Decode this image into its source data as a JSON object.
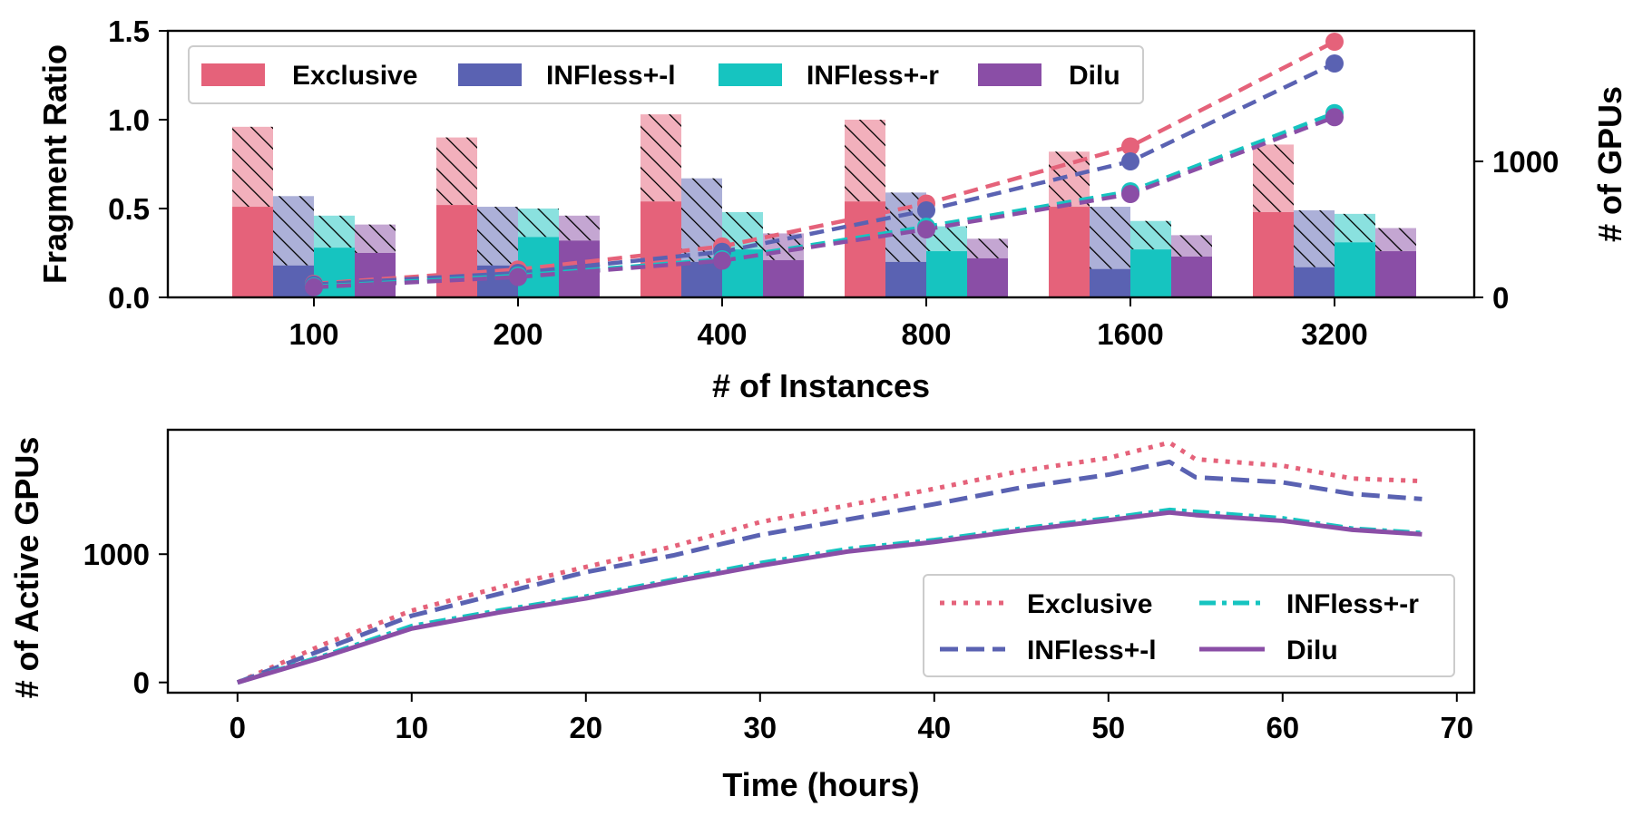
{
  "colors": {
    "exclusive": "#e5627a",
    "infless_l": "#5a62b2",
    "infless_r": "#16c4c0",
    "dilu": "#8a4ea6"
  },
  "chart_data": [
    {
      "type": "bar",
      "categories": [
        "100",
        "200",
        "400",
        "800",
        "1600",
        "3200"
      ],
      "xlabel": "# of Instances",
      "ylabel": "Fragment Ratio",
      "ylabel_right": "# of  GPUs",
      "ylim": [
        0,
        1.5
      ],
      "yticks": [
        "0.0",
        "0.5",
        "1.0",
        "1.5"
      ],
      "ylim_right": [
        0,
        1960
      ],
      "yticks_right": [
        "0",
        "1000"
      ],
      "legend": [
        "Exclusive",
        "INFless+-l",
        "INFless+-r",
        "Dilu"
      ],
      "series": [
        {
          "name": "Exclusive",
          "solid": [
            0.51,
            0.52,
            0.54,
            0.54,
            0.51,
            0.48
          ],
          "total": [
            0.96,
            0.9,
            1.03,
            1.0,
            0.82,
            0.86
          ]
        },
        {
          "name": "INFless+-l",
          "solid": [
            0.18,
            0.18,
            0.2,
            0.2,
            0.16,
            0.17
          ],
          "total": [
            0.57,
            0.51,
            0.67,
            0.59,
            0.51,
            0.49
          ]
        },
        {
          "name": "INFless+-r",
          "solid": [
            0.28,
            0.34,
            0.27,
            0.26,
            0.27,
            0.31
          ],
          "total": [
            0.46,
            0.5,
            0.48,
            0.4,
            0.43,
            0.47
          ]
        },
        {
          "name": "Dilu",
          "solid": [
            0.25,
            0.32,
            0.21,
            0.22,
            0.23,
            0.26
          ],
          "total": [
            0.41,
            0.46,
            0.36,
            0.33,
            0.35,
            0.39
          ]
        }
      ],
      "gpu_lines": [
        {
          "name": "Exclusive",
          "values": [
            100,
            205,
            375,
            690,
            1110,
            1880
          ]
        },
        {
          "name": "INFless+-l",
          "values": [
            95,
            180,
            335,
            640,
            1000,
            1720
          ]
        },
        {
          "name": "INFless+-r",
          "values": [
            80,
            160,
            280,
            520,
            780,
            1355
          ]
        },
        {
          "name": "Dilu",
          "values": [
            75,
            150,
            270,
            500,
            760,
            1325
          ]
        }
      ]
    },
    {
      "type": "line",
      "xlabel": "Time (hours)",
      "ylabel": "# of Active GPUs",
      "xlim": [
        -4,
        71
      ],
      "ylim": [
        -80,
        1970
      ],
      "xticks": [
        "0",
        "10",
        "20",
        "30",
        "40",
        "50",
        "60",
        "70"
      ],
      "yticks": [
        "0",
        "1000"
      ],
      "legend": [
        "Exclusive",
        "INFless+-r",
        "INFless+-l",
        "Dilu"
      ],
      "series": [
        {
          "name": "Exclusive",
          "style": "dotted",
          "x": [
            0,
            5,
            10,
            15,
            20,
            25,
            30,
            35,
            40,
            45,
            50,
            53.5,
            55,
            60,
            64,
            68
          ],
          "values": [
            0,
            300,
            560,
            740,
            900,
            1060,
            1250,
            1380,
            1510,
            1650,
            1750,
            1870,
            1740,
            1690,
            1590,
            1570
          ]
        },
        {
          "name": "INFless+-l",
          "style": "dashed",
          "x": [
            0,
            5,
            10,
            15,
            20,
            25,
            30,
            35,
            40,
            45,
            50,
            53.5,
            55,
            60,
            64,
            68
          ],
          "values": [
            0,
            260,
            520,
            690,
            860,
            990,
            1150,
            1270,
            1390,
            1520,
            1620,
            1720,
            1600,
            1560,
            1470,
            1430
          ]
        },
        {
          "name": "INFless+-r",
          "style": "dashdot",
          "x": [
            0,
            5,
            10,
            15,
            20,
            25,
            30,
            35,
            40,
            45,
            50,
            53.5,
            55,
            60,
            64,
            68
          ],
          "values": [
            0,
            210,
            440,
            560,
            670,
            800,
            930,
            1040,
            1110,
            1200,
            1280,
            1345,
            1330,
            1280,
            1200,
            1165
          ]
        },
        {
          "name": "Dilu",
          "style": "solid",
          "x": [
            0,
            5,
            10,
            15,
            20,
            25,
            30,
            35,
            40,
            45,
            50,
            53.5,
            55,
            60,
            64,
            68
          ],
          "values": [
            0,
            200,
            420,
            545,
            655,
            785,
            910,
            1020,
            1095,
            1185,
            1265,
            1325,
            1305,
            1260,
            1190,
            1155
          ]
        }
      ]
    }
  ]
}
